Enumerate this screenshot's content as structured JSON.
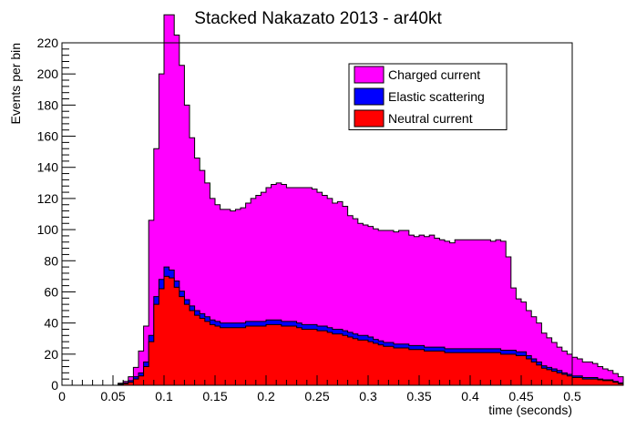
{
  "chart_data": {
    "type": "area",
    "title": "Stacked Nakazato 2013  - ar40kt",
    "xlabel": "time (seconds)",
    "ylabel": "Events per bin",
    "xlim": [
      0,
      0.5
    ],
    "ylim": [
      0,
      220
    ],
    "bin_width": 0.005,
    "grid": false,
    "legend_position": "top-right",
    "x_ticks": [
      0,
      0.05,
      0.1,
      0.15,
      0.2,
      0.25,
      0.3,
      0.35,
      0.4,
      0.45,
      0.5
    ],
    "x_tick_labels": [
      "0",
      "0.05",
      "0.1",
      "0.15",
      "0.2",
      "0.25",
      "0.3",
      "0.35",
      "0.4",
      "0.45",
      "0.5"
    ],
    "y_ticks": [
      0,
      20,
      40,
      60,
      80,
      100,
      120,
      140,
      160,
      180,
      200,
      220
    ],
    "y_tick_labels": [
      "0",
      "20",
      "40",
      "60",
      "80",
      "100",
      "120",
      "140",
      "160",
      "180",
      "200",
      "220"
    ],
    "legend": [
      {
        "name": "Charged current",
        "color": "#ff00ff"
      },
      {
        "name": "Elastic scattering",
        "color": "#0000ff"
      },
      {
        "name": "Neutral current",
        "color": "#ff0000"
      }
    ],
    "stacked_totals": [
      {
        "name": "Neutral current",
        "color": "#ff0000",
        "values": [
          0,
          0,
          0,
          0,
          0,
          0,
          0,
          0,
          0,
          0,
          0,
          0.5,
          1,
          2,
          4,
          6,
          12,
          28,
          52,
          62,
          70,
          69,
          63,
          57,
          52,
          48,
          45,
          43,
          41,
          39,
          38,
          37,
          37,
          37,
          37,
          37,
          38,
          38,
          38,
          38,
          39,
          39,
          39,
          38,
          38,
          38,
          37,
          36,
          36,
          36,
          35,
          35,
          34,
          33,
          33,
          32,
          31,
          30,
          29,
          29,
          28,
          27,
          26,
          25,
          25,
          24,
          24,
          24,
          23,
          23,
          23,
          22,
          22,
          22,
          22,
          21,
          21,
          21,
          21,
          21,
          21,
          21,
          21,
          21,
          21,
          21,
          20,
          20,
          20,
          19,
          19,
          17,
          15,
          13,
          11,
          10,
          9,
          8,
          7,
          6,
          5,
          5,
          4,
          4,
          4,
          3.5,
          3,
          3,
          2,
          1
        ]
      },
      {
        "name": "Elastic scattering",
        "color": "#0000ff",
        "values": [
          0,
          0,
          0,
          0,
          0,
          0,
          0,
          0,
          0,
          0,
          0,
          0.3,
          0.5,
          1,
          1.5,
          2,
          3,
          4,
          5,
          6,
          6,
          5,
          4,
          3.5,
          3,
          3,
          3,
          3,
          3,
          3,
          3,
          3,
          3,
          3,
          3,
          3,
          3,
          3,
          3,
          3,
          3,
          3,
          3,
          3,
          3,
          3,
          3,
          3,
          3,
          3,
          3,
          3,
          3,
          3,
          3,
          3,
          3,
          3,
          3,
          3,
          3,
          2.5,
          2.5,
          2.5,
          2.5,
          2.5,
          2.5,
          2.5,
          2.5,
          2.5,
          2.5,
          2.5,
          2.5,
          2.5,
          2.5,
          2.5,
          2.5,
          2.5,
          2.5,
          2.5,
          2.5,
          2.5,
          2.5,
          2.5,
          2.5,
          2.5,
          2.5,
          2.5,
          2.5,
          2.5,
          2.5,
          2,
          2,
          2,
          1.5,
          1.5,
          1.5,
          1.5,
          1,
          1,
          1,
          1,
          1,
          1,
          1,
          0.5,
          0.5,
          0.5,
          0.5,
          0.5
        ]
      },
      {
        "name": "Charged current",
        "color": "#ff00ff",
        "values": [
          0,
          0,
          0,
          0,
          0,
          0,
          0,
          0,
          0,
          0,
          0,
          0.5,
          1,
          2.5,
          6,
          14,
          23,
          74,
          95,
          132,
          162,
          164,
          158,
          145,
          125,
          108,
          98,
          92,
          86,
          78,
          75,
          73,
          73,
          72,
          73,
          74,
          76,
          79,
          81,
          83,
          85,
          87,
          88,
          88,
          86,
          86,
          87,
          88,
          88,
          87,
          86,
          84,
          83,
          81,
          82,
          80,
          75,
          74,
          72,
          71,
          71,
          71,
          71,
          72,
          72,
          72,
          73,
          73,
          71,
          70,
          71,
          71,
          72,
          70,
          69,
          69,
          68,
          70,
          70,
          70,
          70,
          70,
          70,
          70,
          69,
          70,
          70,
          60,
          40,
          34,
          32,
          29,
          27,
          25,
          21,
          19,
          17,
          15,
          14,
          13,
          12,
          11,
          10,
          10,
          9,
          8,
          7,
          6,
          5,
          4
        ]
      }
    ]
  }
}
